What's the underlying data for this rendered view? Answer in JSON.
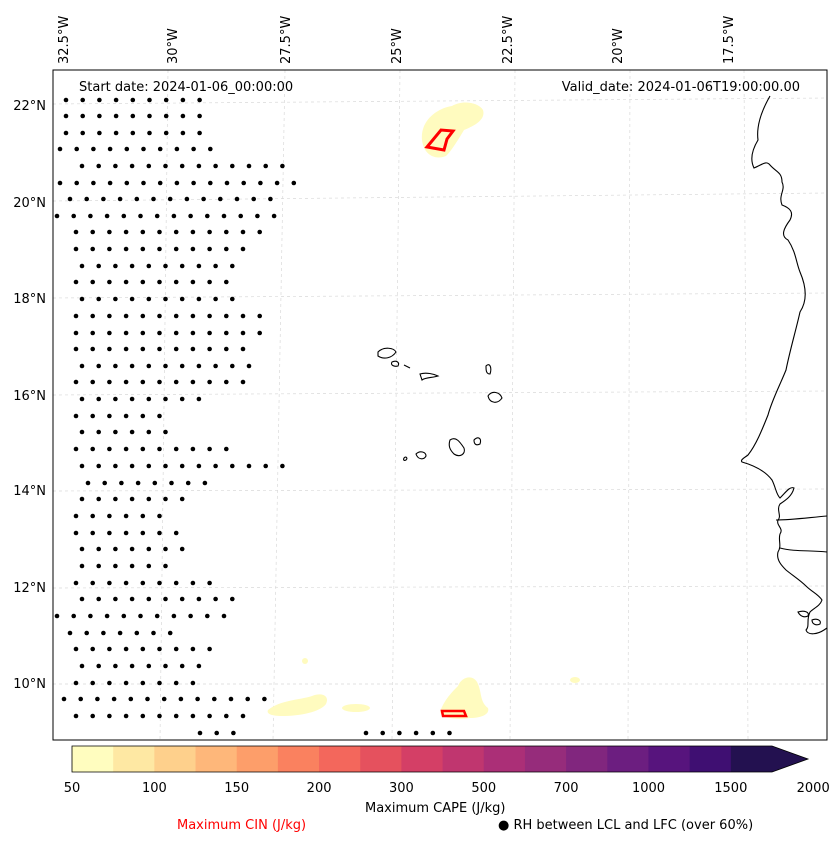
{
  "header": {
    "start_date": "Start date: 2024-01-06_00:00:00",
    "valid_date": "Valid_date: 2024-01-06T19:00:00.00"
  },
  "axes": {
    "longitude_labels": [
      "32.5°W",
      "30°W",
      "27.5°W",
      "25°W",
      "22.5°W",
      "20°W",
      "17.5°W"
    ],
    "latitude_labels": [
      "22°N",
      "20°N",
      "18°N",
      "16°N",
      "14°N",
      "12°N",
      "10°N"
    ]
  },
  "colorbar": {
    "title": "Maximum CAPE (J/kg)",
    "ticks": [
      "50",
      "100",
      "150",
      "200",
      "300",
      "500",
      "700",
      "1000",
      "1500",
      "2000"
    ],
    "colors": [
      "#fffdbf",
      "#fee8a3",
      "#fed08c",
      "#feb77a",
      "#fd9e6a",
      "#fa815f",
      "#f3675c",
      "#e5515e",
      "#d43f66",
      "#c0366f",
      "#ab2f77",
      "#962c7b",
      "#81267e",
      "#6c1e80",
      "#57147d",
      "#3f0f72",
      "#231150"
    ],
    "extend": "max"
  },
  "legend": {
    "cin_label": "Maximum CIN (J/kg)",
    "cin_color": "#ff0000",
    "rh_label": "RH between LCL and LFC (over 60%)",
    "rh_symbol": "●"
  },
  "colors": {
    "gridline": "#cccccc",
    "coastline": "#000000",
    "cape_low": "#fffbbf"
  }
}
